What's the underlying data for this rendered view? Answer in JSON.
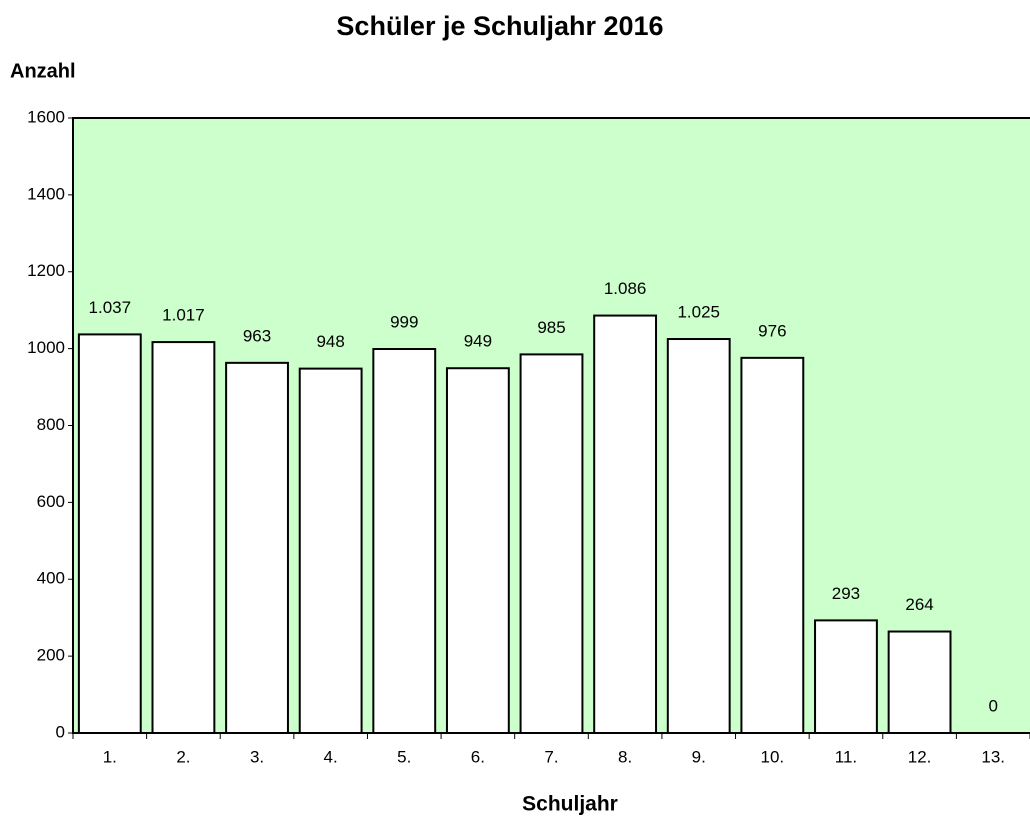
{
  "chart_data": {
    "type": "bar",
    "title": "Schüler je Schuljahr 2016",
    "y_label": "Anzahl",
    "x_label": "Schuljahr",
    "categories": [
      "1.",
      "2.",
      "3.",
      "4.",
      "5.",
      "6.",
      "7.",
      "8.",
      "9.",
      "10.",
      "11.",
      "12.",
      "13."
    ],
    "values": [
      1037,
      1017,
      963,
      948,
      999,
      949,
      985,
      1086,
      1025,
      976,
      293,
      264,
      0
    ],
    "value_labels": [
      "1.037",
      "1.017",
      "963",
      "948",
      "999",
      "949",
      "985",
      "1.086",
      "1.025",
      "976",
      "293",
      "264",
      "0"
    ],
    "color": "#ffffff",
    "plot_background": "#ccffcc",
    "ylim": [
      0,
      1600
    ],
    "yticks": [
      0,
      200,
      400,
      600,
      800,
      1000,
      1200,
      1400,
      1600
    ]
  }
}
